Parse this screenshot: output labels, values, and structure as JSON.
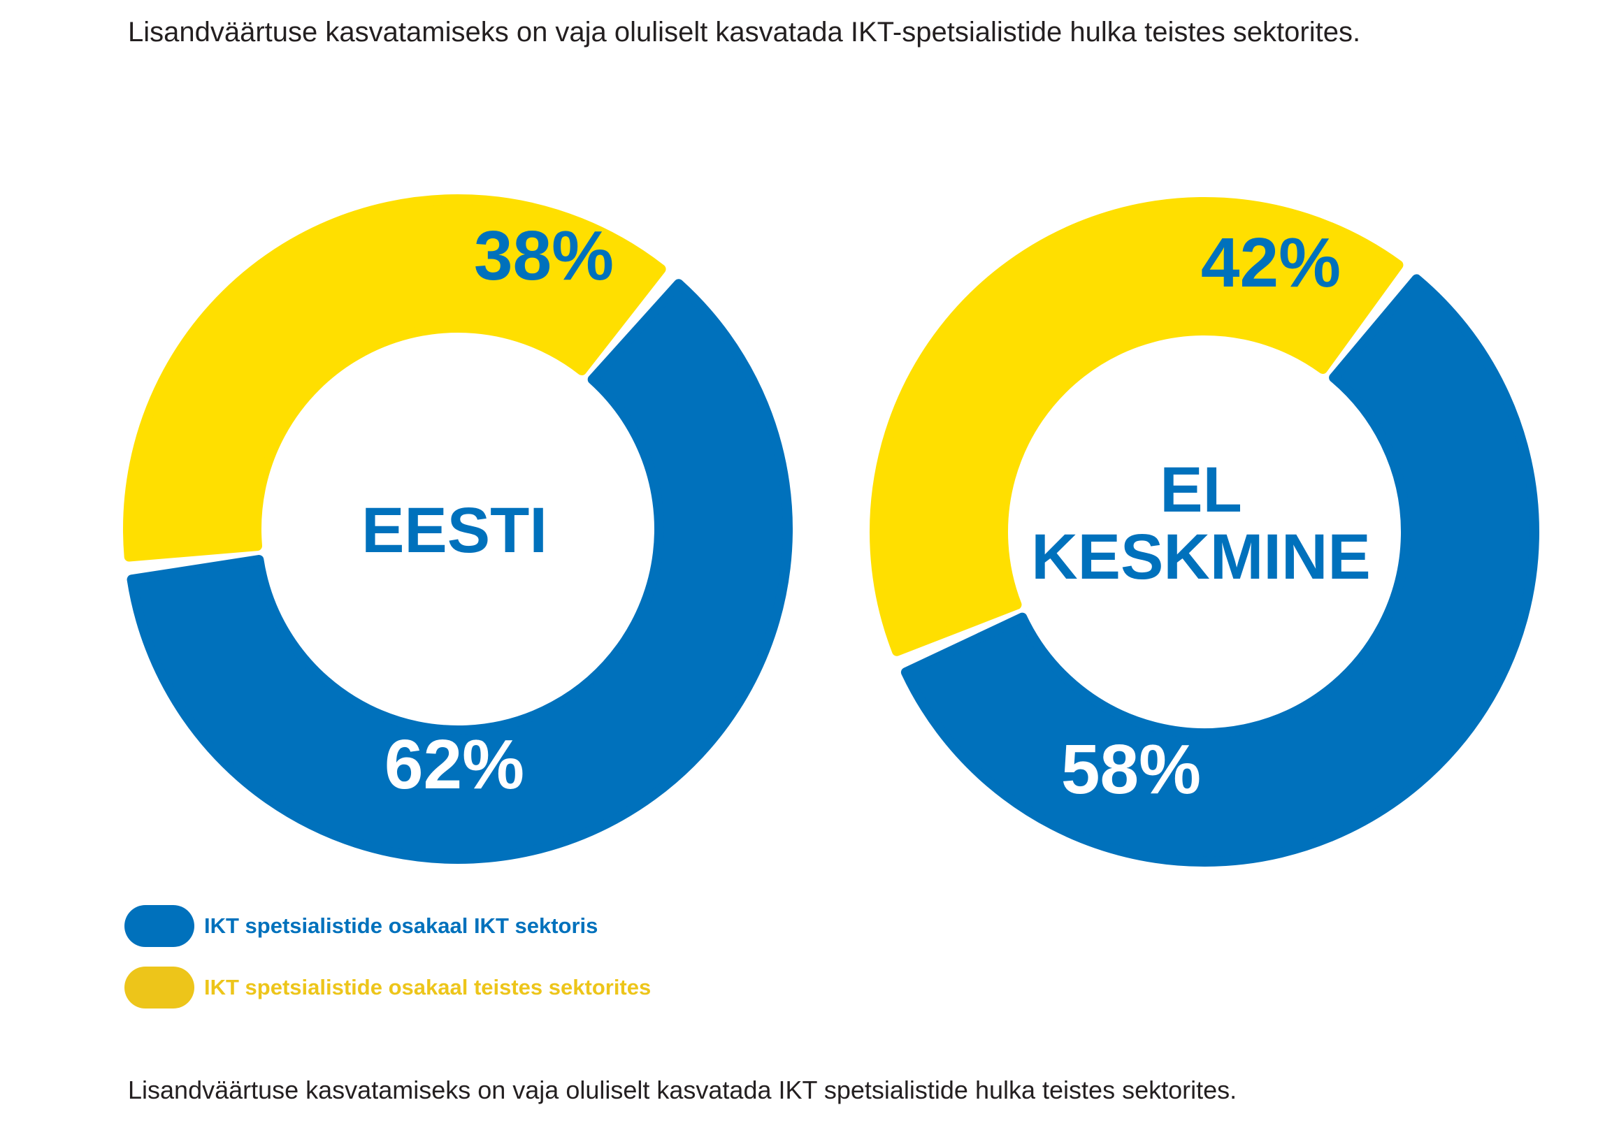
{
  "title": "Lisandväärtuse kasvatamiseks on vaja oluliselt kasvatada IKT-spetsialistide hulka teistes sektorites.",
  "footer": "Lisandväärtuse kasvatamiseks on vaja oluliselt kasvatada IKT spetsialistide hulka teistes sektorites.",
  "colors": {
    "ikt_sector": "#0071BC",
    "other_sectors": "#FFDF00",
    "legend_other": "#EDC51A",
    "text": "#231F20"
  },
  "legend": [
    {
      "label": "IKT spetsialistide osakaal IKT sektoris",
      "color": "#0071BC"
    },
    {
      "label": "IKT spetsialistide osakaal teistes sektorites",
      "color": "#EDC51A"
    }
  ],
  "chart_data": [
    {
      "type": "pie",
      "donut": true,
      "center_label": [
        "EESTI"
      ],
      "slices": [
        {
          "name": "IKT spetsialistide osakaal IKT sektoris",
          "value": 62,
          "label": "62%"
        },
        {
          "name": "IKT spetsialistide osakaal teistes sektorites",
          "value": 38,
          "label": "38%"
        }
      ]
    },
    {
      "type": "pie",
      "donut": true,
      "center_label": [
        "EL",
        "KESKMINE"
      ],
      "slices": [
        {
          "name": "IKT spetsialistide osakaal IKT sektoris",
          "value": 58,
          "label": "58%"
        },
        {
          "name": "IKT spetsialistide osakaal teistes sektorites",
          "value": 42,
          "label": "42%"
        }
      ]
    }
  ]
}
